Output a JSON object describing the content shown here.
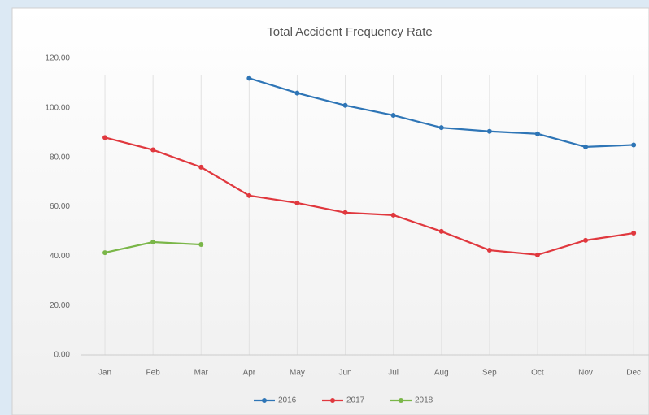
{
  "chart_data": {
    "type": "line",
    "title": "Total Accident Frequency Rate",
    "categories": [
      "Jan",
      "Feb",
      "Mar",
      "Apr",
      "May",
      "Jun",
      "Jul",
      "Aug",
      "Sep",
      "Oct",
      "Nov",
      "Dec"
    ],
    "series": [
      {
        "name": "2016",
        "color": "#2e75b6",
        "values": [
          null,
          null,
          null,
          112,
          106,
          101,
          97,
          92,
          90.5,
          89.5,
          84.2,
          85
        ]
      },
      {
        "name": "2017",
        "color": "#e0383e",
        "values": [
          88,
          83,
          76,
          64.5,
          61.5,
          57.6,
          56.6,
          50,
          42.4,
          40.5,
          46.4,
          49.3
        ]
      },
      {
        "name": "2018",
        "color": "#7ab648",
        "values": [
          41.4,
          45.7,
          44.7,
          null,
          null,
          null,
          null,
          null,
          null,
          null,
          null,
          null
        ]
      }
    ],
    "ylim": [
      0,
      120
    ],
    "yticks": [
      {
        "value": 0,
        "label": "0.00"
      },
      {
        "value": 20,
        "label": "20.00"
      },
      {
        "value": 40,
        "label": "40.00"
      },
      {
        "value": 60,
        "label": "60.00"
      },
      {
        "value": 80,
        "label": "80.00"
      },
      {
        "value": 100,
        "label": "100.00"
      },
      {
        "value": 120,
        "label": "120.00"
      }
    ],
    "grid": false,
    "legend": "bottom"
  }
}
